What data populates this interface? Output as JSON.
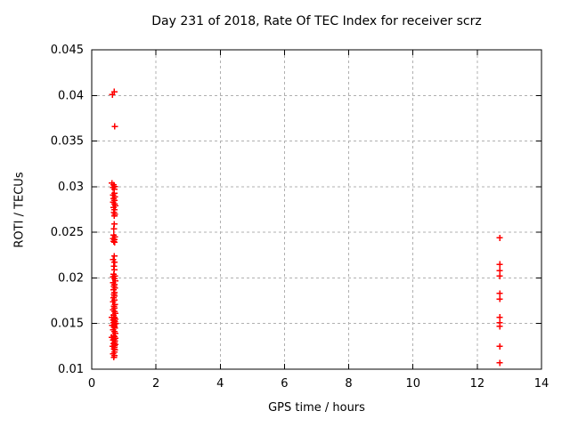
{
  "chart_data": {
    "type": "scatter",
    "title": "Day 231 of 2018, Rate Of TEC Index for receiver scrz",
    "xlabel": "GPS time / hours",
    "ylabel": "ROTI / TECUs",
    "xlim": [
      0,
      14
    ],
    "ylim": [
      0.01,
      0.045
    ],
    "xticks": [
      0,
      2,
      4,
      6,
      8,
      10,
      12,
      14
    ],
    "xtick_labels": [
      "0",
      "2",
      "4",
      "6",
      "8",
      "10",
      "12",
      "14"
    ],
    "yticks": [
      0.01,
      0.015,
      0.02,
      0.025,
      0.03,
      0.035,
      0.04,
      0.045
    ],
    "ytick_labels": [
      "0.01",
      "0.015",
      "0.02",
      "0.025",
      "0.03",
      "0.035",
      "0.04",
      "0.045"
    ],
    "grid": true,
    "legend": "none",
    "marker": "plus",
    "colors": {
      "marker": "#ff0000",
      "grid": "#b0b0b0",
      "axis": "#000000",
      "background": "#ffffff"
    },
    "series": [
      {
        "name": "ROTI",
        "points": [
          [
            0.7,
            0.0404
          ],
          [
            0.64,
            0.0401
          ],
          [
            0.72,
            0.0366
          ],
          [
            0.63,
            0.0304
          ],
          [
            0.68,
            0.0302
          ],
          [
            0.72,
            0.03
          ],
          [
            0.66,
            0.0299
          ],
          [
            0.7,
            0.0297
          ],
          [
            0.7,
            0.0293
          ],
          [
            0.66,
            0.0291
          ],
          [
            0.72,
            0.0289
          ],
          [
            0.68,
            0.0287
          ],
          [
            0.71,
            0.0285
          ],
          [
            0.67,
            0.0283
          ],
          [
            0.7,
            0.0281
          ],
          [
            0.73,
            0.0279
          ],
          [
            0.68,
            0.0277
          ],
          [
            0.71,
            0.0275
          ],
          [
            0.69,
            0.0272
          ],
          [
            0.72,
            0.027
          ],
          [
            0.7,
            0.0268
          ],
          [
            0.7,
            0.0259
          ],
          [
            0.69,
            0.0254
          ],
          [
            0.68,
            0.0247
          ],
          [
            0.72,
            0.0245
          ],
          [
            0.66,
            0.0243
          ],
          [
            0.7,
            0.0242
          ],
          [
            0.68,
            0.024
          ],
          [
            0.71,
            0.0239
          ],
          [
            0.7,
            0.0224
          ],
          [
            0.67,
            0.022
          ],
          [
            0.71,
            0.0217
          ],
          [
            0.69,
            0.0213
          ],
          [
            0.7,
            0.0209
          ],
          [
            0.68,
            0.0204
          ],
          [
            0.72,
            0.0202
          ],
          [
            0.66,
            0.0201
          ],
          [
            0.7,
            0.0199
          ],
          [
            0.73,
            0.0197
          ],
          [
            0.67,
            0.0195
          ],
          [
            0.7,
            0.0193
          ],
          [
            0.69,
            0.0191
          ],
          [
            0.72,
            0.0189
          ],
          [
            0.68,
            0.0187
          ],
          [
            0.71,
            0.0184
          ],
          [
            0.69,
            0.0182
          ],
          [
            0.7,
            0.018
          ],
          [
            0.68,
            0.0178
          ],
          [
            0.7,
            0.0176
          ],
          [
            0.66,
            0.0174
          ],
          [
            0.72,
            0.0171
          ],
          [
            0.69,
            0.0169
          ],
          [
            0.71,
            0.0167
          ],
          [
            0.67,
            0.0165
          ],
          [
            0.7,
            0.0163
          ],
          [
            0.73,
            0.0161
          ],
          [
            0.68,
            0.0159
          ],
          [
            0.63,
            0.0157
          ],
          [
            0.71,
            0.0157
          ],
          [
            0.69,
            0.0156
          ],
          [
            0.74,
            0.0155
          ],
          [
            0.66,
            0.0154
          ],
          [
            0.7,
            0.0153
          ],
          [
            0.72,
            0.0152
          ],
          [
            0.68,
            0.0151
          ],
          [
            0.75,
            0.015
          ],
          [
            0.7,
            0.0149
          ],
          [
            0.64,
            0.0148
          ],
          [
            0.71,
            0.0147
          ],
          [
            0.69,
            0.0146
          ],
          [
            0.72,
            0.0145
          ],
          [
            0.67,
            0.0143
          ],
          [
            0.7,
            0.0141
          ],
          [
            0.73,
            0.0139
          ],
          [
            0.68,
            0.0137
          ],
          [
            0.71,
            0.0136
          ],
          [
            0.62,
            0.0135
          ],
          [
            0.74,
            0.0134
          ],
          [
            0.69,
            0.0133
          ],
          [
            0.66,
            0.0132
          ],
          [
            0.72,
            0.0131
          ],
          [
            0.7,
            0.0129
          ],
          [
            0.68,
            0.0128
          ],
          [
            0.73,
            0.0127
          ],
          [
            0.7,
            0.0126
          ],
          [
            0.65,
            0.0125
          ],
          [
            0.71,
            0.0124
          ],
          [
            0.69,
            0.0122
          ],
          [
            0.72,
            0.0121
          ],
          [
            0.7,
            0.0119
          ],
          [
            0.67,
            0.0117
          ],
          [
            0.7,
            0.0115
          ],
          [
            0.69,
            0.0113
          ],
          [
            12.7,
            0.0244
          ],
          [
            12.7,
            0.0215
          ],
          [
            12.7,
            0.0208
          ],
          [
            12.7,
            0.0202
          ],
          [
            12.7,
            0.0183
          ],
          [
            12.7,
            0.0177
          ],
          [
            12.7,
            0.0157
          ],
          [
            12.7,
            0.0151
          ],
          [
            12.7,
            0.0147
          ],
          [
            12.7,
            0.0125
          ],
          [
            12.7,
            0.0107
          ]
        ]
      }
    ]
  }
}
